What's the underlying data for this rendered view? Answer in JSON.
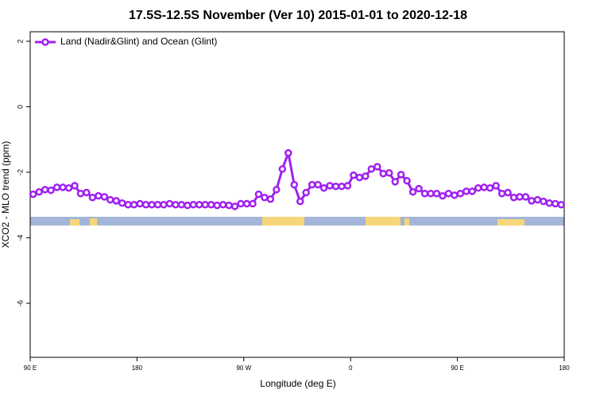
{
  "chart_data": {
    "type": "line",
    "title": "17.5S-12.5S November (Ver 10)   2015-01-01 to 2020-12-18",
    "x_label": "Longitude (deg E)",
    "y_label": "XCO2 - MLO trend (ppm)",
    "legend_position": "top-left",
    "x": [
      92.5,
      97.5,
      102.5,
      107.5,
      112.5,
      117.5,
      122.5,
      127.5,
      132.5,
      137.5,
      142.5,
      147.5,
      152.5,
      157.5,
      162.5,
      167.5,
      172.5,
      177.5,
      182.5,
      187.5,
      192.5,
      197.5,
      202.5,
      207.5,
      212.5,
      217.5,
      222.5,
      227.5,
      232.5,
      237.5,
      242.5,
      247.5,
      252.5,
      257.5,
      262.5,
      267.5,
      272.5,
      277.5,
      282.5,
      287.5,
      292.5,
      297.5,
      302.5,
      307.5,
      312.5,
      317.5,
      322.5,
      327.5,
      332.5,
      337.5,
      342.5,
      347.5,
      352.5,
      357.5,
      362.5,
      367.5,
      372.5,
      377.5,
      382.5,
      387.5,
      392.5,
      397.5,
      402.5,
      407.5,
      412.5,
      417.5,
      422.5,
      427.5,
      432.5,
      437.5,
      442.5,
      447.5,
      452.5,
      457.5,
      462.5,
      467.5,
      472.5,
      477.5,
      482.5,
      487.5,
      492.5,
      497.5,
      502.5,
      507.5,
      512.5,
      517.5,
      522.5,
      527.5,
      532.5,
      537.5
    ],
    "series": [
      {
        "name": "Land (Nadir&Glint) and Ocean (Glint)",
        "color": "#a020f0",
        "values": [
          -2.67,
          -2.6,
          -2.53,
          -2.55,
          -2.46,
          -2.46,
          -2.48,
          -2.41,
          -2.65,
          -2.62,
          -2.77,
          -2.72,
          -2.75,
          -2.84,
          -2.87,
          -2.94,
          -2.99,
          -2.99,
          -2.96,
          -2.99,
          -2.99,
          -2.99,
          -2.99,
          -2.96,
          -2.99,
          -2.99,
          -3.01,
          -2.99,
          -2.99,
          -2.99,
          -2.99,
          -3.01,
          -2.99,
          -3.01,
          -3.04,
          -2.96,
          -2.96,
          -2.96,
          -2.67,
          -2.77,
          -2.82,
          -2.53,
          -1.9,
          -1.41,
          -2.38,
          -2.89,
          -2.62,
          -2.38,
          -2.38,
          -2.48,
          -2.41,
          -2.43,
          -2.43,
          -2.41,
          -2.09,
          -2.16,
          -2.12,
          -1.9,
          -1.83,
          -2.04,
          -2.02,
          -2.29,
          -2.07,
          -2.26,
          -2.6,
          -2.5,
          -2.65,
          -2.65,
          -2.65,
          -2.72,
          -2.65,
          -2.7,
          -2.65,
          -2.58,
          -2.58,
          -2.48,
          -2.46,
          -2.48,
          -2.41,
          -2.65,
          -2.62,
          -2.77,
          -2.75,
          -2.75,
          -2.87,
          -2.84,
          -2.89,
          -2.94,
          -2.96,
          -2.99
        ]
      }
    ],
    "xlim": [
      90,
      540
    ],
    "xticks": [
      {
        "value": 90,
        "label": "90 E"
      },
      180,
      {
        "value": 270,
        "label": "90 W"
      },
      {
        "value": 360,
        "label": "0"
      },
      {
        "value": 450,
        "label": "90 E"
      },
      {
        "value": 540,
        "label": "180"
      }
    ],
    "ylim": [
      -7.65,
      2.29
    ],
    "yticks": [
      2,
      0,
      -2,
      -4,
      -6
    ]
  }
}
